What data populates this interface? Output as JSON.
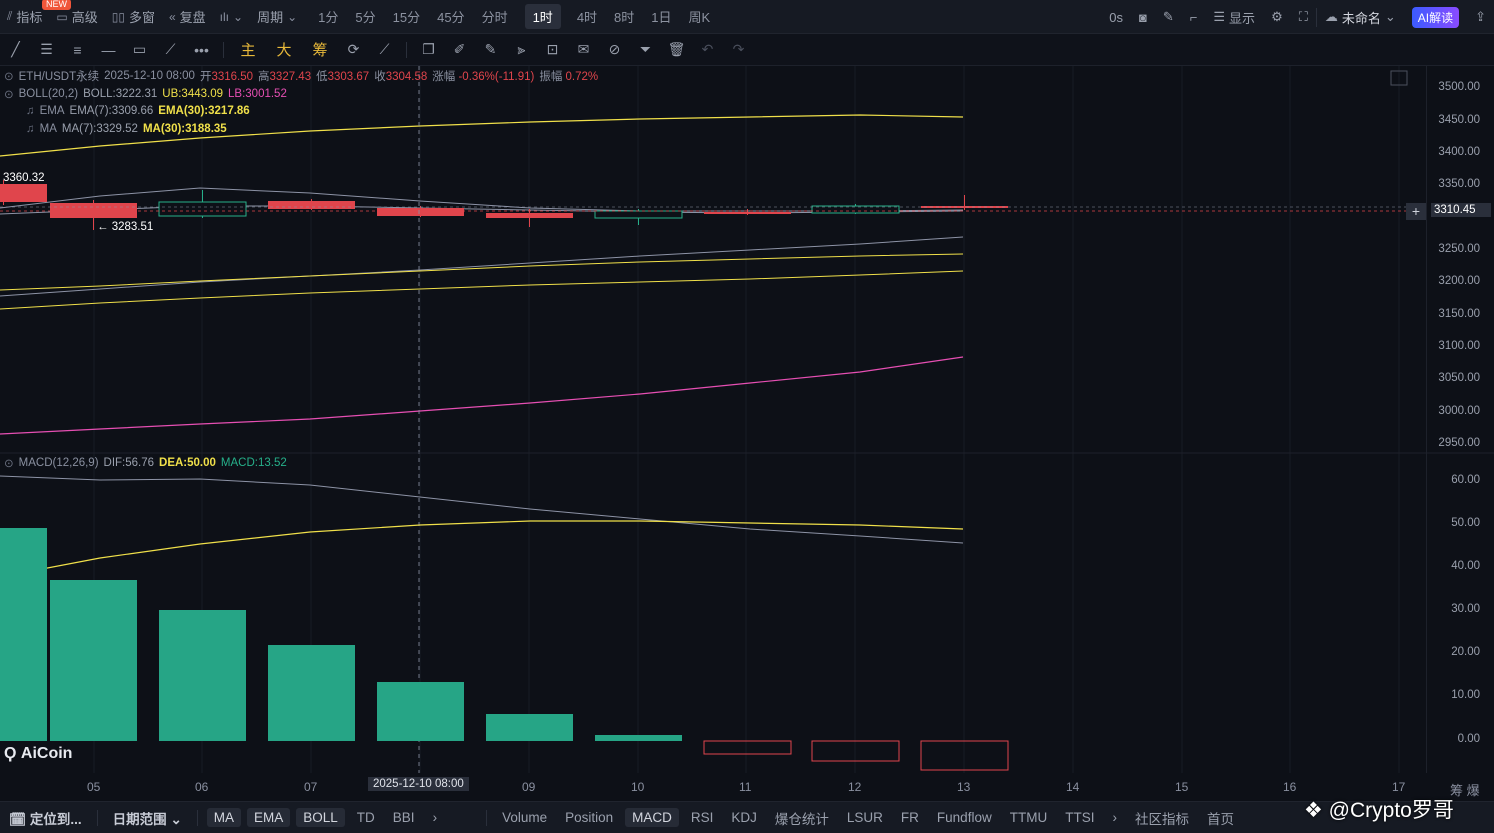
{
  "topbar": {
    "indicator": "指标",
    "new_badge": "NEW",
    "advanced": "高级",
    "multi_window": "多窗",
    "replay": "复盘",
    "period_label": "周期",
    "periods": [
      "1分",
      "5分",
      "15分",
      "45分",
      "分时",
      "1时",
      "4时",
      "8时",
      "1日",
      "周K"
    ],
    "active_period": "1时",
    "countdown": "0s",
    "display": "显示",
    "unnamed": "未命名",
    "ai_button": "AI解读"
  },
  "toolbar2": {
    "main": "主",
    "big": "大",
    "chip": "筹"
  },
  "legend": {
    "symbol": "ETH/USDT永续",
    "datetime": "2025-12-10 08:00",
    "open_label": "开",
    "open": "3316.50",
    "high_label": "高",
    "high": "3327.43",
    "low_label": "低",
    "low": "3303.67",
    "close_label": "收",
    "close": "3304.58",
    "change_label": "涨幅",
    "change": "-0.36%(-11.91)",
    "amp_label": "振幅",
    "amp": "0.72%",
    "boll_name": "BOLL(20,2)",
    "boll_mid": "BOLL:3222.31",
    "boll_ub": "UB:3443.09",
    "boll_lb": "LB:3001.52",
    "ema_name": "EMA",
    "ema7": "EMA(7):3309.66",
    "ema30": "EMA(30):3217.86",
    "ma_name": "MA",
    "ma7": "MA(7):3329.52",
    "ma30": "MA(30):3188.35",
    "macd_name": "MACD(12,26,9)",
    "dif": "DIF:56.76",
    "dea": "DEA:50.00",
    "macd": "MACD:13.52"
  },
  "price_axis": [
    "3500.00",
    "3450.00",
    "3400.00",
    "3350.00",
    "3310.45",
    "3250.00",
    "3200.00",
    "3150.00",
    "3100.00",
    "3050.00",
    "3000.00",
    "2950.00"
  ],
  "current_price": "3310.45",
  "macd_axis": [
    "60.00",
    "50.00",
    "40.00",
    "30.00",
    "20.00",
    "10.00",
    "0.00"
  ],
  "left_price_tag": "3360.32",
  "low_marker": "← 3283.51",
  "x_axis": [
    "05",
    "06",
    "07",
    "09",
    "10",
    "11",
    "12",
    "13",
    "14",
    "15",
    "16",
    "17"
  ],
  "crosshair_time": "2025-12-10 08:00",
  "x_right": "筹 爆",
  "watermark_logo": "AiCoin",
  "watermark_author": "@Crypto罗哥",
  "bottombar": {
    "locate": "定位到...",
    "date_range": "日期范围",
    "main_indicators": [
      "MA",
      "EMA",
      "BOLL",
      "TD",
      "BBI"
    ],
    "sub_indicators": [
      "Volume",
      "Position",
      "MACD",
      "RSI",
      "KDJ",
      "爆仓统计",
      "LSUR",
      "FR",
      "Fundflow",
      "TTMU",
      "TTSI"
    ],
    "active_sub": "MACD",
    "community": "社区指标",
    "home": "首页"
  },
  "colors": {
    "bg": "#0d1017",
    "up": "#26b08a",
    "down": "#e0454c",
    "yellow": "#f0e04a",
    "pink": "#e64fb3",
    "gray_line": "#8d93a6"
  }
}
